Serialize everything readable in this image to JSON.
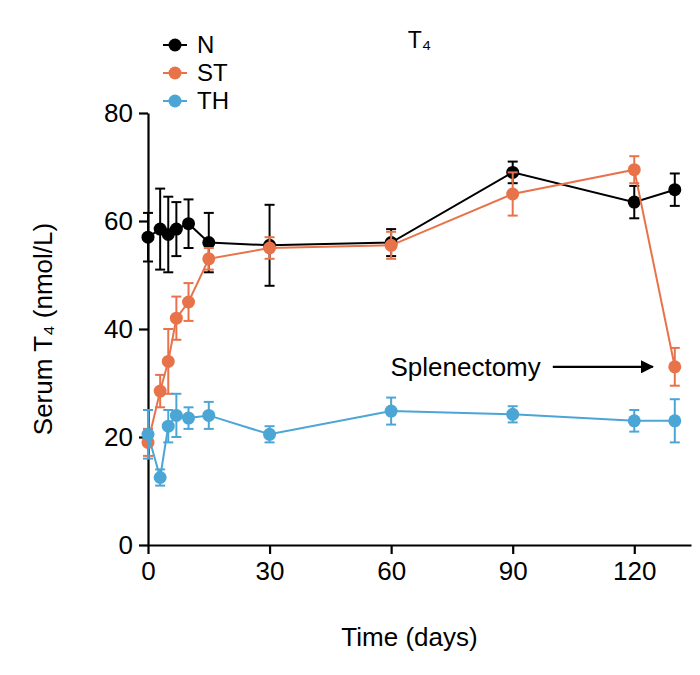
{
  "chart_data": {
    "type": "line",
    "title": "T₄",
    "x_label": "Time (days)",
    "y_label": "Serum T₄ (nmol/L)",
    "annotation": "Splenectomy",
    "x": [
      0,
      3,
      5,
      7,
      10,
      15,
      30,
      60,
      90,
      120,
      130
    ],
    "series": [
      {
        "name": "N",
        "color": "#000000",
        "marker": "circle",
        "line_style": "solid",
        "values": [
          57,
          58.5,
          57.5,
          58.5,
          59.5,
          56,
          55.5,
          56,
          69,
          63.5,
          65.8
        ],
        "errors": [
          4.5,
          7.5,
          7,
          5,
          4.5,
          5.5,
          7.5,
          2.5,
          2,
          3,
          3
        ]
      },
      {
        "name": "ST",
        "color": "#e8734a",
        "marker": "circle",
        "line_style": "solid",
        "values": [
          19,
          28.5,
          34,
          42,
          45,
          53,
          55,
          55.5,
          65,
          69.5,
          33
        ],
        "errors": [
          2.5,
          3,
          6,
          4,
          3.5,
          2,
          2,
          2.5,
          4,
          2.5,
          3.5
        ]
      },
      {
        "name": "TH",
        "color": "#4ba6d6",
        "marker": "circle",
        "line_style": "solid",
        "values": [
          20.5,
          12.5,
          22,
          24,
          23.5,
          24,
          20.5,
          24.8,
          24.2,
          23,
          23
        ],
        "errors": [
          4.5,
          1.5,
          3,
          4,
          2,
          2.5,
          1.5,
          2.5,
          1.5,
          2,
          4
        ]
      }
    ],
    "xlim": [
      0,
      134
    ],
    "xticks": [
      0,
      30,
      60,
      90,
      120
    ],
    "ylim": [
      0,
      80
    ],
    "yticks": [
      0,
      20,
      40,
      60,
      80
    ],
    "grid": false,
    "legend": "upper left"
  }
}
